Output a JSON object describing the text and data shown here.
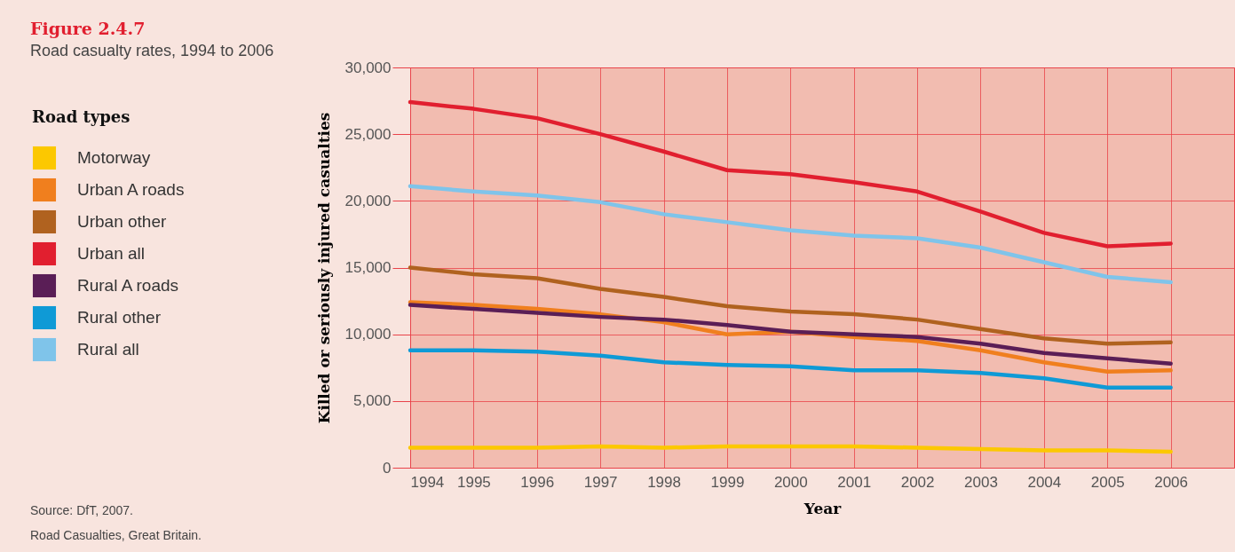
{
  "chart_data": {
    "type": "line",
    "title": "Figure 2.4.7",
    "subtitle": "Road casualty rates, 1994 to 2006",
    "xlabel": "Year",
    "ylabel": "Killed or seriously injured casualties",
    "legend_title": "Road types",
    "legend": "left",
    "x": [
      1994,
      1995,
      1996,
      1997,
      1998,
      1999,
      2000,
      2001,
      2002,
      2003,
      2004,
      2005,
      2006
    ],
    "xlim": [
      1994,
      2007
    ],
    "xticks": [
      1994,
      1995,
      1996,
      1997,
      1998,
      1999,
      2000,
      2001,
      2002,
      2003,
      2004,
      2005,
      2006
    ],
    "ylim": [
      0,
      30000
    ],
    "yticks": [
      {
        "value": 0,
        "label": "0"
      },
      {
        "value": 5000,
        "label": "5,000"
      },
      {
        "value": 10000,
        "label": "10,000"
      },
      {
        "value": 15000,
        "label": "15,000"
      },
      {
        "value": 20000,
        "label": "20,000"
      },
      {
        "value": 25000,
        "label": "25,000"
      },
      {
        "value": 30000,
        "label": "30,000"
      }
    ],
    "grid": true,
    "marker": "none",
    "line_style": "solid",
    "series": [
      {
        "name": "Motorway",
        "color": "#fcc800",
        "values": [
          1500,
          1500,
          1500,
          1600,
          1500,
          1600,
          1600,
          1600,
          1500,
          1400,
          1300,
          1300,
          1200
        ]
      },
      {
        "name": "Urban A roads",
        "color": "#f07f1e",
        "values": [
          12400,
          12200,
          11900,
          11500,
          10900,
          10000,
          10200,
          9800,
          9500,
          8800,
          7900,
          7200,
          7300
        ]
      },
      {
        "name": "Urban other",
        "color": "#b0621f",
        "values": [
          15000,
          14500,
          14200,
          13400,
          12800,
          12100,
          11700,
          11500,
          11100,
          10400,
          9700,
          9300,
          9400
        ]
      },
      {
        "name": "Urban all",
        "color": "#e11f2f",
        "values": [
          27400,
          26900,
          26200,
          25000,
          23700,
          22300,
          22000,
          21400,
          20700,
          19200,
          17600,
          16600,
          16800
        ]
      },
      {
        "name": "Rural A roads",
        "color": "#5a1e56",
        "values": [
          12200,
          11900,
          11600,
          11300,
          11100,
          10700,
          10200,
          10000,
          9800,
          9300,
          8600,
          8200,
          7800
        ]
      },
      {
        "name": "Rural other",
        "color": "#0f9ad6",
        "values": [
          8800,
          8800,
          8700,
          8400,
          7900,
          7700,
          7600,
          7300,
          7300,
          7100,
          6700,
          6000,
          6000
        ]
      },
      {
        "name": "Rural all",
        "color": "#7fc4ea",
        "values": [
          21100,
          20700,
          20400,
          19900,
          19000,
          18400,
          17800,
          17400,
          17200,
          16500,
          15400,
          14300,
          13900
        ]
      }
    ],
    "annotations": [
      "Source: DfT, 2007.",
      "Road Casualties, Great Britain."
    ]
  }
}
